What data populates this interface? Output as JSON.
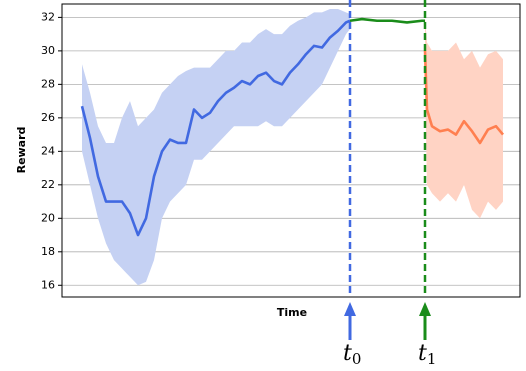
{
  "chart_data": {
    "type": "line",
    "xlabel": "Time",
    "ylabel": "Reward",
    "xlim": [
      0,
      458
    ],
    "ylim": [
      15.3,
      32.8
    ],
    "yticks": [
      16,
      18,
      20,
      22,
      24,
      26,
      28,
      30,
      32
    ],
    "grid": true,
    "series": [
      {
        "color": "#4169e1",
        "band_color": "#c5d1f3",
        "x": [
          20,
          28,
          36,
          44,
          52,
          60,
          68,
          76,
          84,
          92,
          100,
          108,
          116,
          124,
          132,
          140,
          148,
          156,
          164,
          172,
          180,
          188,
          196,
          204,
          212,
          220,
          228,
          236,
          244,
          252,
          260,
          268,
          276,
          284,
          288
        ],
        "values": [
          26.7,
          24.8,
          22.5,
          21,
          21,
          21,
          20.3,
          19,
          20,
          22.5,
          24,
          24.7,
          24.5,
          24.5,
          26.5,
          26,
          26.3,
          27,
          27.5,
          27.8,
          28.2,
          28,
          28.5,
          28.7,
          28.2,
          28,
          28.7,
          29.2,
          29.8,
          30.3,
          30.2,
          30.8,
          31.2,
          31.7,
          31.8
        ],
        "upper": [
          29.2,
          27.5,
          25.5,
          24.5,
          24.5,
          26,
          27,
          25.5,
          26,
          26.5,
          27.5,
          28,
          28.5,
          28.8,
          29,
          29,
          29,
          29.5,
          30,
          30,
          30.5,
          30.5,
          31,
          31.3,
          31,
          31,
          31.5,
          31.8,
          32,
          32.3,
          32.3,
          32.5,
          32.5,
          32.3,
          32.2
        ],
        "lower": [
          24,
          22,
          20,
          18.5,
          17.5,
          17,
          16.5,
          16,
          16.2,
          17.5,
          20,
          21,
          21.5,
          22,
          23.5,
          23.5,
          24,
          24.5,
          25,
          25.5,
          25.5,
          25.5,
          25.5,
          25.8,
          25.5,
          25.5,
          26,
          26.5,
          27,
          27.5,
          28,
          29,
          30,
          31,
          31.3
        ]
      },
      {
        "color": "#1a8c1a",
        "x": [
          288,
          300,
          315,
          330,
          345,
          360,
          363
        ],
        "values": [
          31.8,
          31.9,
          31.8,
          31.8,
          31.7,
          31.8,
          31.8
        ]
      },
      {
        "color": "#ff7f50",
        "band_color": "#ffd3c4",
        "x": [
          363,
          365,
          370,
          378,
          386,
          394,
          402,
          410,
          418,
          426,
          434,
          441
        ],
        "values": [
          30,
          26.5,
          25.5,
          25.2,
          25.3,
          25,
          25.8,
          25.2,
          24.5,
          25.3,
          25.5,
          25
        ],
        "upper": [
          32,
          30.5,
          30,
          30,
          30,
          30.5,
          29.5,
          30,
          29,
          29.8,
          30,
          29.5
        ],
        "lower": [
          28,
          22,
          21.5,
          21,
          21.5,
          21,
          22,
          20.5,
          20,
          21,
          20.5,
          21
        ]
      }
    ],
    "markers": [
      {
        "x": 288,
        "color": "#4169e1",
        "label": "t",
        "sub": "0"
      },
      {
        "x": 363,
        "color": "#1a8c1a",
        "label": "t",
        "sub": "1"
      }
    ]
  }
}
